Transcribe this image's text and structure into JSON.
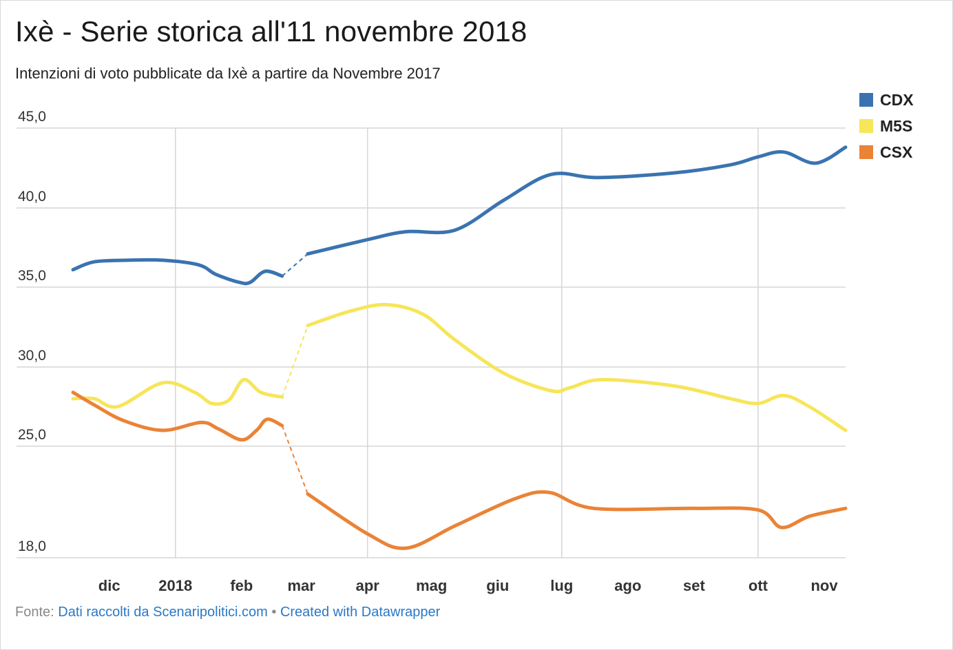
{
  "title": "Ixè - Serie storica all'11 novembre 2018",
  "subtitle": "Intenzioni di voto pubblicate da Ixè a partire da Novembre 2017",
  "footer": {
    "source_prefix": "Fonte: ",
    "source_link": "Dati raccolti da Scenaripolitici.com",
    "separator": " • ",
    "credit_link": "Created with Datawrapper"
  },
  "chart_data": {
    "type": "line",
    "title": "Ixè - Serie storica all'11 novembre 2018",
    "subtitle": "Intenzioni di voto pubblicate da Ixè a partire da Novembre 2017",
    "xlabel": "",
    "ylabel": "",
    "x_range": [
      "2017-11-14",
      "2018-11-11"
    ],
    "ylim": [
      18,
      45
    ],
    "y_ticks": [
      18,
      25,
      30,
      35,
      40,
      45
    ],
    "y_tick_labels": [
      "18,0",
      "25,0",
      "30,0",
      "35,0",
      "40,0",
      "45,0"
    ],
    "x_ticks": [
      {
        "date": "2017-12-01",
        "label": "dic"
      },
      {
        "date": "2018-01-01",
        "label": "2018"
      },
      {
        "date": "2018-02-01",
        "label": "feb"
      },
      {
        "date": "2018-03-01",
        "label": "mar"
      },
      {
        "date": "2018-04-01",
        "label": "apr"
      },
      {
        "date": "2018-05-01",
        "label": "mag"
      },
      {
        "date": "2018-06-01",
        "label": "giu"
      },
      {
        "date": "2018-07-01",
        "label": "lug"
      },
      {
        "date": "2018-08-01",
        "label": "ago"
      },
      {
        "date": "2018-09-01",
        "label": "set"
      },
      {
        "date": "2018-10-01",
        "label": "ott"
      },
      {
        "date": "2018-11-01",
        "label": "nov"
      }
    ],
    "vertical_gridlines": [
      "2018-01-01",
      "2018-04-01",
      "2018-07-01",
      "2018-10-01"
    ],
    "gap": {
      "from": "2018-02-23",
      "to": "2018-03-04",
      "style": "dashed"
    },
    "grid": true,
    "legend": "top-right",
    "series": [
      {
        "name": "CDX",
        "color": "#3a73b0",
        "points": [
          [
            "2017-11-14",
            36.1
          ],
          [
            "2017-11-24",
            36.6
          ],
          [
            "2017-12-10",
            36.7
          ],
          [
            "2017-12-26",
            36.7
          ],
          [
            "2018-01-12",
            36.4
          ],
          [
            "2018-01-20",
            35.8
          ],
          [
            "2018-01-31",
            35.3
          ],
          [
            "2018-02-05",
            35.3
          ],
          [
            "2018-02-12",
            36.0
          ],
          [
            "2018-02-20",
            35.7
          ],
          [
            "2018-03-04",
            37.1
          ],
          [
            "2018-04-01",
            38.0
          ],
          [
            "2018-04-19",
            38.5
          ],
          [
            "2018-05-12",
            38.6
          ],
          [
            "2018-06-04",
            40.5
          ],
          [
            "2018-06-26",
            42.1
          ],
          [
            "2018-07-18",
            41.9
          ],
          [
            "2018-08-23",
            42.2
          ],
          [
            "2018-09-18",
            42.7
          ],
          [
            "2018-10-01",
            43.2
          ],
          [
            "2018-10-13",
            43.5
          ],
          [
            "2018-10-28",
            42.8
          ],
          [
            "2018-11-11",
            43.8
          ]
        ]
      },
      {
        "name": "M5S",
        "color": "#f7e55a",
        "points": [
          [
            "2017-11-14",
            28.0
          ],
          [
            "2017-11-24",
            28.0
          ],
          [
            "2017-12-05",
            27.5
          ],
          [
            "2017-12-26",
            29.0
          ],
          [
            "2018-01-10",
            28.4
          ],
          [
            "2018-01-18",
            27.7
          ],
          [
            "2018-01-26",
            27.9
          ],
          [
            "2018-02-02",
            29.2
          ],
          [
            "2018-02-10",
            28.4
          ],
          [
            "2018-02-20",
            28.1
          ],
          [
            "2018-03-04",
            32.6
          ],
          [
            "2018-03-24",
            33.5
          ],
          [
            "2018-04-10",
            33.9
          ],
          [
            "2018-04-27",
            33.3
          ],
          [
            "2018-05-12",
            31.7
          ],
          [
            "2018-06-04",
            29.6
          ],
          [
            "2018-06-26",
            28.5
          ],
          [
            "2018-07-05",
            28.7
          ],
          [
            "2018-07-20",
            29.2
          ],
          [
            "2018-08-23",
            28.8
          ],
          [
            "2018-09-18",
            28.0
          ],
          [
            "2018-10-01",
            27.7
          ],
          [
            "2018-10-13",
            28.2
          ],
          [
            "2018-10-25",
            27.5
          ],
          [
            "2018-11-11",
            26.0
          ]
        ]
      },
      {
        "name": "CSX",
        "color": "#ea8336",
        "points": [
          [
            "2017-11-14",
            28.4
          ],
          [
            "2017-11-24",
            27.6
          ],
          [
            "2017-12-08",
            26.6
          ],
          [
            "2017-12-26",
            26.0
          ],
          [
            "2018-01-13",
            26.5
          ],
          [
            "2018-01-21",
            26.1
          ],
          [
            "2018-02-01",
            25.4
          ],
          [
            "2018-02-08",
            26.0
          ],
          [
            "2018-02-13",
            26.7
          ],
          [
            "2018-02-20",
            26.3
          ],
          [
            "2018-03-04",
            22.0
          ],
          [
            "2018-04-01",
            19.5
          ],
          [
            "2018-04-19",
            18.6
          ],
          [
            "2018-05-12",
            20.0
          ],
          [
            "2018-06-09",
            21.7
          ],
          [
            "2018-06-25",
            22.1
          ],
          [
            "2018-07-16",
            21.1
          ],
          [
            "2018-09-01",
            21.1
          ],
          [
            "2018-10-01",
            21.0
          ],
          [
            "2018-10-12",
            19.9
          ],
          [
            "2018-10-25",
            20.6
          ],
          [
            "2018-11-11",
            21.1
          ]
        ]
      }
    ]
  }
}
